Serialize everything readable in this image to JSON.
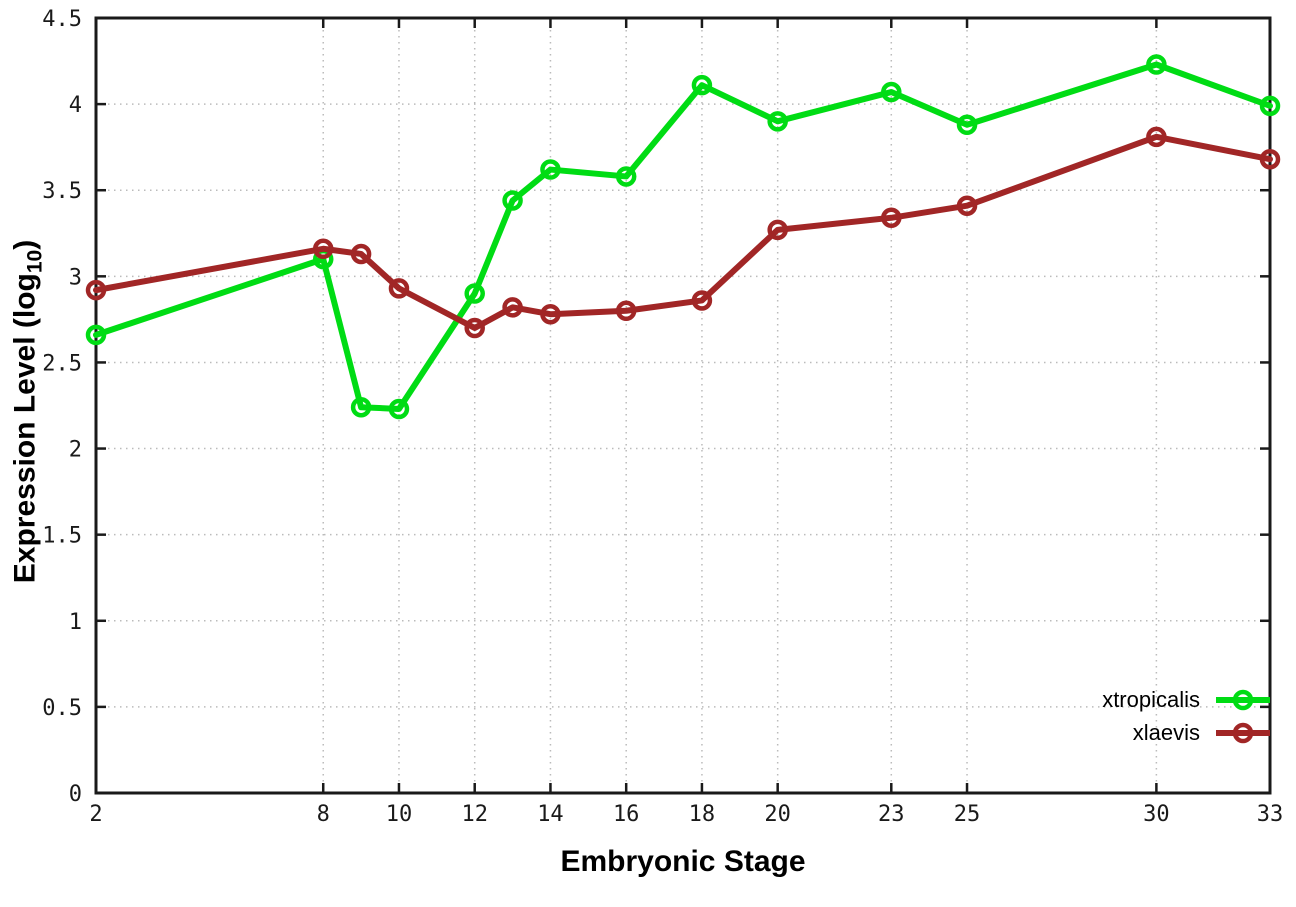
{
  "chart_data": {
    "type": "line",
    "title": "",
    "xlabel": "Embryonic Stage",
    "ylabel": "Expression Level (log10)",
    "ylabel_parts": {
      "prefix": "Expression Level (log",
      "sub": "10",
      "suffix": ")"
    },
    "xlim": [
      2,
      33
    ],
    "ylim": [
      0,
      4.5
    ],
    "grid": true,
    "legend_position": "bottom-right",
    "x_ticks": [
      2,
      8,
      10,
      12,
      14,
      16,
      18,
      20,
      23,
      25,
      30,
      33
    ],
    "y_ticks": [
      0,
      0.5,
      1,
      1.5,
      2,
      2.5,
      3,
      3.5,
      4,
      4.5
    ],
    "y_tick_labels": [
      "0",
      "0.5",
      "1",
      "1.5",
      "2",
      "2.5",
      "3",
      "3.5",
      "4",
      "4.5"
    ],
    "x": [
      2,
      8,
      9,
      10,
      12,
      13,
      14,
      16,
      18,
      20,
      23,
      25,
      30,
      33
    ],
    "series": [
      {
        "name": "xtropicalis",
        "color": "#00dc14",
        "values": [
          2.66,
          3.1,
          2.24,
          2.23,
          2.9,
          3.44,
          3.62,
          3.58,
          4.11,
          3.9,
          4.07,
          3.88,
          4.23,
          3.99
        ]
      },
      {
        "name": "xlaevis",
        "color": "#a12626",
        "values": [
          2.92,
          3.16,
          3.13,
          2.93,
          2.7,
          2.82,
          2.78,
          2.8,
          2.86,
          3.27,
          3.34,
          3.41,
          3.81,
          3.68
        ]
      }
    ],
    "colors": {
      "background": "#ffffff",
      "axis": "#1a1a1a",
      "grid": "#bbbbbb",
      "tick_text": "#1a1a1a"
    }
  }
}
